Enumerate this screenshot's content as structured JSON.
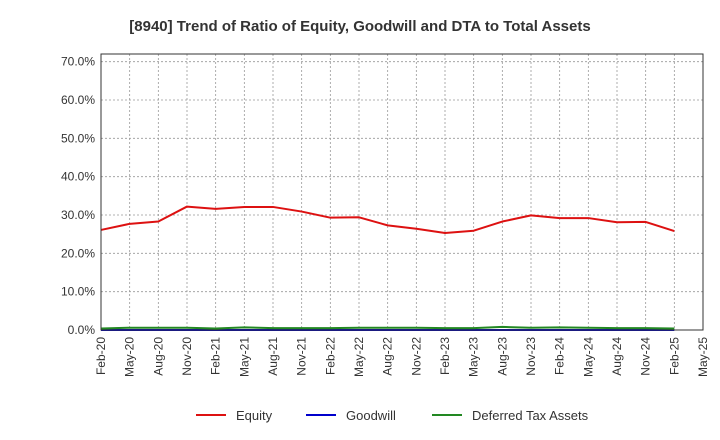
{
  "chart_data": {
    "type": "line",
    "title": "[8940]  Trend of Ratio of Equity, Goodwill and DTA to Total Assets",
    "xlabel": "",
    "ylabel": "",
    "ylim": [
      0,
      0.72
    ],
    "yticks": [
      0,
      0.1,
      0.2,
      0.3,
      0.4,
      0.5,
      0.6,
      0.7
    ],
    "ytick_labels": [
      "0.0%",
      "10.0%",
      "20.0%",
      "30.0%",
      "40.0%",
      "50.0%",
      "60.0%",
      "70.0%"
    ],
    "x": [
      "Feb-20",
      "May-20",
      "Aug-20",
      "Nov-20",
      "Feb-21",
      "May-21",
      "Aug-21",
      "Nov-21",
      "Feb-22",
      "May-22",
      "Aug-22",
      "Nov-22",
      "Feb-23",
      "May-23",
      "Aug-23",
      "Nov-23",
      "Feb-24",
      "May-24",
      "Aug-24",
      "Nov-24",
      "Feb-25"
    ],
    "xtick_labels": [
      "Feb-20",
      "May-20",
      "Aug-20",
      "Nov-20",
      "Feb-21",
      "May-21",
      "Aug-21",
      "Nov-21",
      "Feb-22",
      "May-22",
      "Aug-22",
      "Nov-22",
      "Feb-23",
      "May-23",
      "Aug-23",
      "Nov-23",
      "Feb-24",
      "May-24",
      "Aug-24",
      "Nov-24",
      "Feb-25",
      "May-25"
    ],
    "grid": true,
    "legend_position": "bottom",
    "series": [
      {
        "name": "Equity",
        "color": "#dd1111",
        "values": [
          0.261,
          0.277,
          0.283,
          0.322,
          0.316,
          0.321,
          0.321,
          0.309,
          0.293,
          0.294,
          0.273,
          0.264,
          0.253,
          0.259,
          0.283,
          0.299,
          0.292,
          0.292,
          0.281,
          0.282,
          0.258
        ]
      },
      {
        "name": "Goodwill",
        "color": "#0000cc",
        "values": [
          0,
          0,
          0,
          0,
          0,
          0,
          0,
          0,
          0,
          0,
          0,
          0,
          0,
          0,
          0,
          0,
          0,
          0,
          0,
          0,
          0
        ]
      },
      {
        "name": "Deferred Tax Assets",
        "color": "#228822",
        "values": [
          0.004,
          0.006,
          0.006,
          0.006,
          0.004,
          0.007,
          0.005,
          0.005,
          0.005,
          0.006,
          0.006,
          0.006,
          0.005,
          0.005,
          0.008,
          0.006,
          0.007,
          0.006,
          0.005,
          0.005,
          0.004
        ]
      }
    ]
  }
}
